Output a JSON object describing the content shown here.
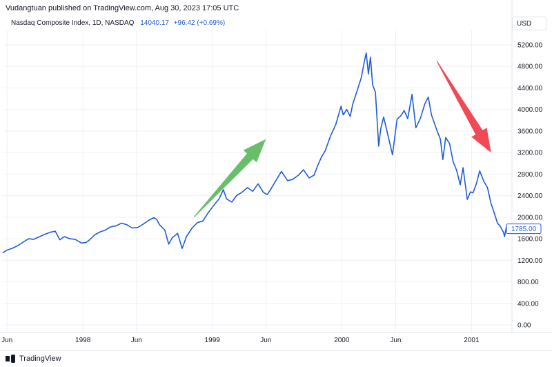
{
  "header": {
    "published_note": "Vudangtuan published on TradingView.com, Aug 30, 2023 17:05 UTC",
    "symbol_line": "Nasdaq Composite Index, 1D, NASDAQ",
    "last_price": "14040.17",
    "change": "+96.42 (+0.69%)",
    "currency_label": "USD"
  },
  "footer": {
    "brand": "TradingView"
  },
  "colors": {
    "line": "#1e5bd7",
    "up_arrow": "#5cb85c",
    "down_arrow": "#f03a47",
    "grid": "#eef0f3",
    "text": "#131722"
  },
  "chart_data": {
    "type": "line",
    "title": "",
    "xlabel": "",
    "ylabel": "",
    "ylim": [
      0,
      5400
    ],
    "y_ticks": [
      0,
      400,
      800,
      1200,
      1600,
      2000,
      2400,
      2800,
      3200,
      3600,
      4000,
      4400,
      4800,
      5200
    ],
    "y_tick_labels": [
      "0.00",
      "400.00",
      "800.00",
      "1200.00",
      "1600.00",
      "2000.00",
      "2400.00",
      "2800.00",
      "3200.00",
      "3600.00",
      "4000.00",
      "4400.00",
      "4800.00",
      "5200.00"
    ],
    "x_ticks": [
      {
        "date": "1997-06-01",
        "label": "Jun"
      },
      {
        "date": "1998-01-01",
        "label": "1998"
      },
      {
        "date": "1998-06-01",
        "label": "Jun"
      },
      {
        "date": "1999-01-01",
        "label": "1999"
      },
      {
        "date": "1999-06-01",
        "label": "Jun"
      },
      {
        "date": "2000-01-01",
        "label": "2000"
      },
      {
        "date": "2000-06-01",
        "label": "Jun"
      },
      {
        "date": "2001-01-01",
        "label": "2001"
      }
    ],
    "x_range": [
      "1997-05-20",
      "2001-04-25"
    ],
    "last_value_label": "1785.00",
    "grid": true,
    "series": [
      {
        "values": [
          [
            "1997-05-20",
            1340
          ],
          [
            "1997-06-01",
            1390
          ],
          [
            "1997-06-15",
            1420
          ],
          [
            "1997-07-01",
            1470
          ],
          [
            "1997-07-15",
            1530
          ],
          [
            "1997-08-01",
            1600
          ],
          [
            "1997-08-15",
            1590
          ],
          [
            "1997-09-01",
            1640
          ],
          [
            "1997-09-15",
            1680
          ],
          [
            "1997-10-01",
            1720
          ],
          [
            "1997-10-15",
            1740
          ],
          [
            "1997-10-28",
            1580
          ],
          [
            "1997-11-10",
            1640
          ],
          [
            "1997-11-25",
            1600
          ],
          [
            "1997-12-10",
            1590
          ],
          [
            "1997-12-28",
            1520
          ],
          [
            "1998-01-10",
            1530
          ],
          [
            "1998-01-20",
            1580
          ],
          [
            "1998-02-05",
            1680
          ],
          [
            "1998-02-20",
            1730
          ],
          [
            "1998-03-05",
            1760
          ],
          [
            "1998-03-20",
            1820
          ],
          [
            "1998-04-05",
            1840
          ],
          [
            "1998-04-20",
            1890
          ],
          [
            "1998-05-05",
            1860
          ],
          [
            "1998-05-20",
            1800
          ],
          [
            "1998-06-05",
            1810
          ],
          [
            "1998-06-20",
            1870
          ],
          [
            "1998-07-05",
            1940
          ],
          [
            "1998-07-20",
            1990
          ],
          [
            "1998-07-28",
            1960
          ],
          [
            "1998-08-05",
            1860
          ],
          [
            "1998-08-20",
            1760
          ],
          [
            "1998-08-31",
            1500
          ],
          [
            "1998-09-10",
            1620
          ],
          [
            "1998-09-25",
            1700
          ],
          [
            "1998-10-08",
            1420
          ],
          [
            "1998-10-20",
            1640
          ],
          [
            "1998-11-05",
            1800
          ],
          [
            "1998-11-20",
            1900
          ],
          [
            "1998-12-05",
            1930
          ],
          [
            "1998-12-20",
            2080
          ],
          [
            "1999-01-05",
            2220
          ],
          [
            "1999-01-20",
            2340
          ],
          [
            "1999-02-01",
            2510
          ],
          [
            "1999-02-10",
            2340
          ],
          [
            "1999-02-25",
            2280
          ],
          [
            "1999-03-10",
            2400
          ],
          [
            "1999-03-25",
            2460
          ],
          [
            "1999-04-10",
            2550
          ],
          [
            "1999-04-25",
            2480
          ],
          [
            "1999-05-10",
            2620
          ],
          [
            "1999-05-25",
            2460
          ],
          [
            "1999-06-05",
            2420
          ],
          [
            "1999-06-15",
            2520
          ],
          [
            "1999-07-01",
            2700
          ],
          [
            "1999-07-15",
            2850
          ],
          [
            "1999-08-01",
            2680
          ],
          [
            "1999-08-15",
            2700
          ],
          [
            "1999-09-01",
            2780
          ],
          [
            "1999-09-15",
            2880
          ],
          [
            "1999-10-01",
            2730
          ],
          [
            "1999-10-15",
            2780
          ],
          [
            "1999-10-25",
            2960
          ],
          [
            "1999-11-05",
            3120
          ],
          [
            "1999-11-15",
            3230
          ],
          [
            "1999-12-01",
            3520
          ],
          [
            "1999-12-15",
            3720
          ],
          [
            "1999-12-30",
            4060
          ],
          [
            "2000-01-05",
            3900
          ],
          [
            "2000-01-15",
            4000
          ],
          [
            "2000-01-25",
            3870
          ],
          [
            "2000-02-01",
            4100
          ],
          [
            "2000-02-15",
            4380
          ],
          [
            "2000-02-25",
            4590
          ],
          [
            "2000-03-05",
            4900
          ],
          [
            "2000-03-10",
            5050
          ],
          [
            "2000-03-16",
            4660
          ],
          [
            "2000-03-22",
            4970
          ],
          [
            "2000-03-28",
            4460
          ],
          [
            "2000-04-05",
            4320
          ],
          [
            "2000-04-14",
            3320
          ],
          [
            "2000-04-20",
            3640
          ],
          [
            "2000-04-28",
            3860
          ],
          [
            "2000-05-10",
            3530
          ],
          [
            "2000-05-23",
            3160
          ],
          [
            "2000-06-05",
            3820
          ],
          [
            "2000-06-15",
            3880
          ],
          [
            "2000-06-25",
            3980
          ],
          [
            "2000-07-05",
            3830
          ],
          [
            "2000-07-17",
            4280
          ],
          [
            "2000-07-28",
            3660
          ],
          [
            "2000-08-10",
            3840
          ],
          [
            "2000-08-22",
            4100
          ],
          [
            "2000-09-01",
            4230
          ],
          [
            "2000-09-10",
            3900
          ],
          [
            "2000-09-25",
            3620
          ],
          [
            "2000-10-05",
            3450
          ],
          [
            "2000-10-12",
            3070
          ],
          [
            "2000-10-20",
            3480
          ],
          [
            "2000-10-31",
            3370
          ],
          [
            "2000-11-10",
            3030
          ],
          [
            "2000-11-20",
            2870
          ],
          [
            "2000-11-30",
            2600
          ],
          [
            "2000-12-08",
            2920
          ],
          [
            "2000-12-20",
            2330
          ],
          [
            "2000-12-29",
            2470
          ],
          [
            "2001-01-05",
            2450
          ],
          [
            "2001-01-15",
            2630
          ],
          [
            "2001-01-24",
            2860
          ],
          [
            "2001-02-05",
            2660
          ],
          [
            "2001-02-15",
            2550
          ],
          [
            "2001-02-25",
            2250
          ],
          [
            "2001-03-05",
            2100
          ],
          [
            "2001-03-15",
            1890
          ],
          [
            "2001-03-22",
            1840
          ],
          [
            "2001-04-01",
            1720
          ],
          [
            "2001-04-04",
            1640
          ],
          [
            "2001-04-10",
            1850
          ],
          [
            "2001-04-12",
            1785
          ]
        ]
      }
    ],
    "annotations": [
      {
        "type": "arrow",
        "direction": "up",
        "color": "#5cb85c",
        "from": [
          "1998-11-10",
          2000
        ],
        "to": [
          "1999-06-01",
          3450
        ]
      },
      {
        "type": "arrow",
        "direction": "down",
        "color": "#f03a47",
        "from": [
          "2000-09-25",
          4900
        ],
        "to": [
          "2001-02-25",
          3200
        ]
      }
    ]
  }
}
